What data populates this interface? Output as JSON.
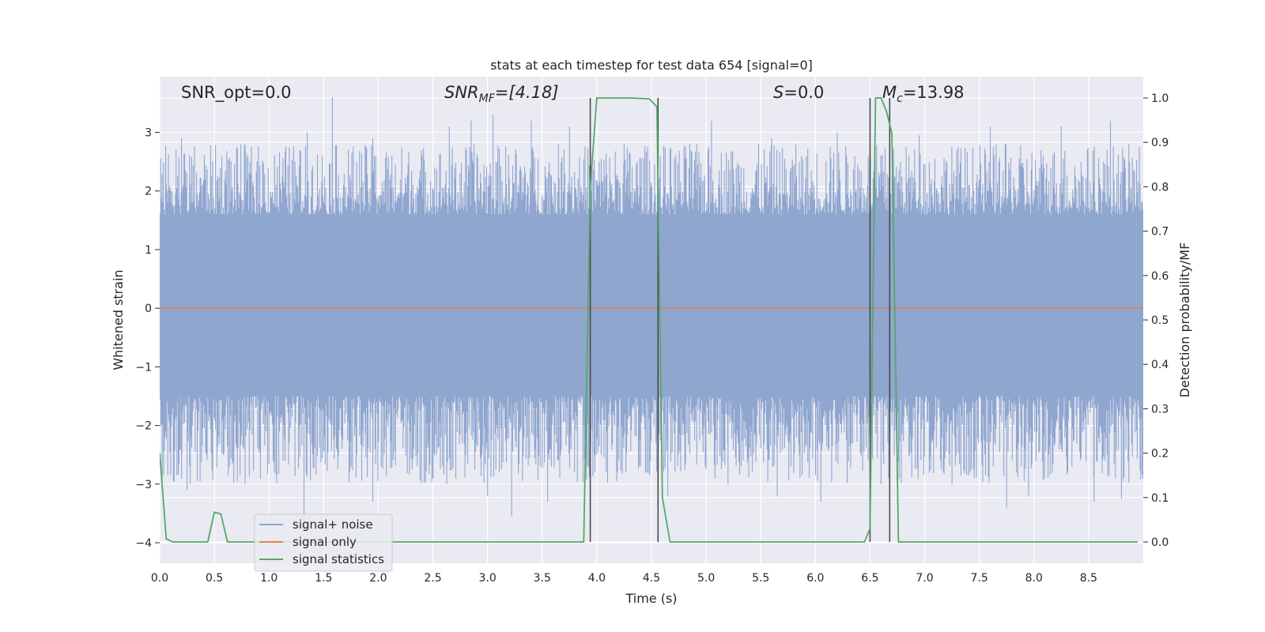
{
  "chart_data": {
    "type": "line",
    "title": "stats at each timestep for test data 654 [signal=0]",
    "xlabel": "Time (s)",
    "ylabel": "Whitened strain",
    "y2label": "Detection probability/MF",
    "xlim": [
      0.0,
      9.0
    ],
    "ylim": [
      -4.35,
      3.95
    ],
    "y2lim": [
      -0.048,
      1.048
    ],
    "xticks": [
      "0.0",
      "0.5",
      "1.0",
      "1.5",
      "2.0",
      "2.5",
      "3.0",
      "3.5",
      "4.0",
      "4.5",
      "5.0",
      "5.5",
      "6.0",
      "6.5",
      "7.0",
      "7.5",
      "8.0",
      "8.5"
    ],
    "yticks": [
      "3",
      "2",
      "1",
      "0",
      "−1",
      "−2",
      "−3",
      "−4"
    ],
    "y2ticks": [
      "1.0",
      "0.9",
      "0.8",
      "0.7",
      "0.6",
      "0.5",
      "0.4",
      "0.3",
      "0.2",
      "0.1",
      "0.0"
    ],
    "grid": true,
    "legend_placement": "lower-left",
    "annotations": {
      "snr_opt": "SNR_opt=0.0",
      "snr_mf_main": "SNR",
      "snr_mf_sub": "MF",
      "snr_mf_value": "=[4.18]",
      "s_main": "S",
      "s_value": "=0.0",
      "mc_main": "M",
      "mc_sub": "c",
      "mc_value": "=13.98"
    },
    "series": [
      {
        "name": "signal+ noise",
        "color": "#8fa6cf",
        "kind": "noise_band",
        "envelope": {
          "upper_typical": [
            1.6,
            2.8
          ],
          "lower_typical": [
            -1.5,
            -3.0
          ],
          "upper_spikes": [
            [
              0.15,
              2.7
            ],
            [
              0.2,
              2.9
            ],
            [
              0.78,
              2.8
            ],
            [
              1.35,
              3.0
            ],
            [
              1.58,
              3.6
            ],
            [
              1.95,
              2.9
            ],
            [
              2.65,
              3.1
            ],
            [
              2.85,
              3.2
            ],
            [
              3.05,
              3.3
            ],
            [
              3.4,
              3.2
            ],
            [
              3.75,
              3.1
            ],
            [
              4.25,
              2.8
            ],
            [
              4.85,
              2.8
            ],
            [
              5.05,
              3.2
            ],
            [
              5.6,
              2.9
            ],
            [
              6.2,
              3.0
            ],
            [
              6.95,
              2.95
            ],
            [
              7.6,
              3.1
            ],
            [
              8.25,
              3.1
            ],
            [
              8.7,
              3.2
            ]
          ],
          "lower_spikes": [
            [
              0.2,
              -2.9
            ],
            [
              0.25,
              -3.1
            ],
            [
              1.05,
              -2.8
            ],
            [
              1.32,
              -3.8
            ],
            [
              1.95,
              -3.3
            ],
            [
              2.5,
              -2.9
            ],
            [
              3.0,
              -3.2
            ],
            [
              3.22,
              -3.55
            ],
            [
              3.55,
              -3.3
            ],
            [
              4.65,
              -3.2
            ],
            [
              5.2,
              -3.0
            ],
            [
              5.65,
              -3.2
            ],
            [
              6.05,
              -3.3
            ],
            [
              6.6,
              -3.0
            ],
            [
              7.25,
              -3.0
            ],
            [
              7.75,
              -3.4
            ],
            [
              7.95,
              -3.2
            ],
            [
              8.55,
              -3.3
            ],
            [
              8.8,
              -3.25
            ]
          ]
        }
      },
      {
        "name": "signal only",
        "color": "#dd8452",
        "x": [
          0.0,
          9.0
        ],
        "y": [
          0.0,
          0.0
        ]
      },
      {
        "name": "signal statistics",
        "color": "#55a868",
        "axis": "right",
        "x": [
          0.0,
          0.06,
          0.12,
          0.44,
          0.5,
          0.56,
          0.62,
          0.7,
          3.88,
          3.94,
          4.0,
          4.12,
          4.3,
          4.48,
          4.55,
          4.6,
          4.67,
          6.45,
          6.5,
          6.55,
          6.6,
          6.65,
          6.7,
          6.76,
          8.95
        ],
        "y": [
          0.2,
          0.007,
          0.0,
          0.0,
          0.067,
          0.063,
          0.0,
          0.0,
          0.0,
          0.8,
          1.0,
          1.0,
          1.0,
          0.998,
          0.98,
          0.1,
          0.0,
          0.0,
          0.03,
          1.0,
          1.0,
          0.97,
          0.92,
          0.0,
          0.0
        ]
      }
    ],
    "event_markers": {
      "color": "#444444",
      "x": [
        3.94,
        4.56,
        6.5,
        6.68
      ]
    }
  }
}
